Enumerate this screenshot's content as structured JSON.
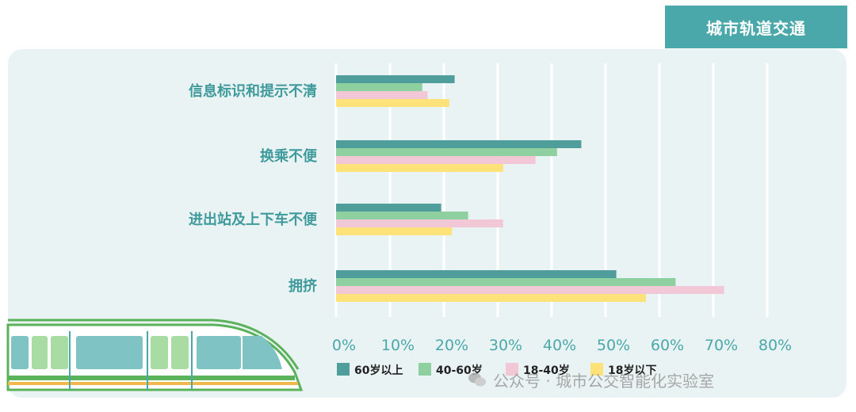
{
  "header": {
    "title": "城市轨道交通"
  },
  "colors": {
    "header_bg": "#4aa8aa",
    "panel_bg": "#eaf3f3",
    "category_text": "#3f9a9c",
    "tick_text": "#4aa8aa"
  },
  "watermark": {
    "text": "公众号 · 城市公交智能化实验室"
  },
  "chart_data": {
    "type": "bar",
    "orientation": "horizontal",
    "categories": [
      "信息标识和提示不清",
      "换乘不便",
      "进出站及上下车不便",
      "拥挤"
    ],
    "series": [
      {
        "name": "60岁以上",
        "color": "#4f9e9c",
        "values": [
          22,
          45.5,
          19.5,
          52
        ]
      },
      {
        "name": "40-60岁",
        "color": "#8fd0a0",
        "values": [
          16,
          41,
          24.5,
          63
        ]
      },
      {
        "name": "18-40岁",
        "color": "#f2c8d6",
        "values": [
          17,
          37,
          31,
          72
        ]
      },
      {
        "name": "18岁以下",
        "color": "#fde27a",
        "values": [
          21,
          31,
          21.5,
          57.5
        ]
      }
    ],
    "xlim": [
      0,
      80
    ],
    "xticks": [
      0,
      10,
      20,
      30,
      40,
      50,
      60,
      70,
      80
    ],
    "tick_format": "{v}%",
    "grid": true,
    "legend": "bottom"
  }
}
